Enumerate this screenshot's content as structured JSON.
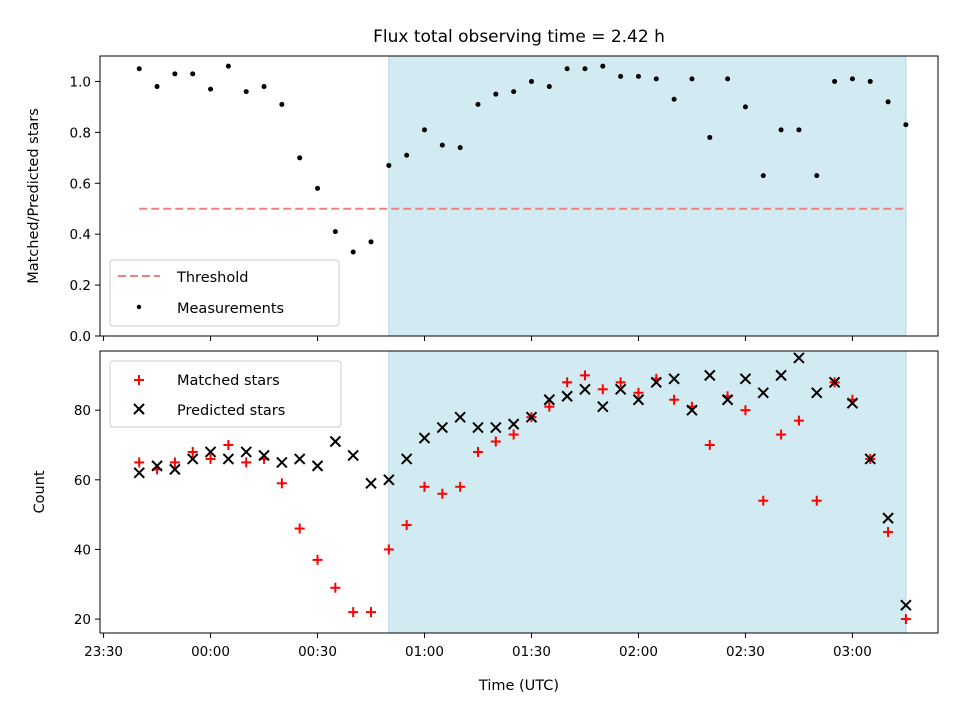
{
  "chart_data": [
    {
      "type": "scatter",
      "title": "Flux total observing time = 2.42 h",
      "xlabel": "",
      "ylabel": "Matched/Predicted stars",
      "ylim": [
        0.0,
        1.1
      ],
      "yticks": [
        "0.0",
        "0.2",
        "0.4",
        "0.6",
        "0.8",
        "1.0"
      ],
      "xlim": [
        "23:29",
        "03:24"
      ],
      "shaded_region": [
        "00:50",
        "03:15"
      ],
      "shaded_color": "#add8e6",
      "threshold": {
        "name": "Threshold",
        "value": 0.5,
        "x_range": [
          "23:40",
          "03:15"
        ],
        "color": "#f08080",
        "style": "dashed"
      },
      "legend": {
        "position": "lower-left",
        "entries": [
          "Threshold",
          "Measurements"
        ]
      },
      "series": [
        {
          "name": "Measurements",
          "marker": "dot",
          "color": "#000000",
          "x": [
            "23:40",
            "23:45",
            "23:50",
            "23:55",
            "00:00",
            "00:05",
            "00:10",
            "00:15",
            "00:20",
            "00:25",
            "00:30",
            "00:35",
            "00:40",
            "00:45",
            "00:50",
            "00:55",
            "01:00",
            "01:05",
            "01:10",
            "01:15",
            "01:20",
            "01:25",
            "01:30",
            "01:35",
            "01:40",
            "01:45",
            "01:50",
            "01:55",
            "02:00",
            "02:05",
            "02:10",
            "02:15",
            "02:20",
            "02:25",
            "02:30",
            "02:35",
            "02:40",
            "02:45",
            "02:50",
            "02:55",
            "03:00",
            "03:05",
            "03:10",
            "03:15"
          ],
          "y": [
            1.05,
            0.98,
            1.03,
            1.03,
            0.97,
            1.06,
            0.96,
            0.98,
            0.91,
            0.7,
            0.58,
            0.41,
            0.33,
            0.37,
            0.67,
            0.71,
            0.81,
            0.75,
            0.74,
            0.91,
            0.95,
            0.96,
            1.0,
            0.98,
            1.05,
            1.05,
            1.06,
            1.02,
            1.02,
            1.01,
            0.93,
            1.01,
            0.78,
            1.01,
            0.9,
            0.63,
            0.81,
            0.81,
            0.63,
            1.0,
            1.01,
            1.0,
            0.92,
            0.83
          ]
        }
      ]
    },
    {
      "type": "scatter",
      "title": "",
      "xlabel": "Time (UTC)",
      "ylabel": "Count",
      "ylim": [
        16,
        97
      ],
      "yticks": [
        "20",
        "40",
        "60",
        "80"
      ],
      "xlim": [
        "23:29",
        "03:24"
      ],
      "xticks": [
        "23:30",
        "00:00",
        "00:30",
        "01:00",
        "01:30",
        "02:00",
        "02:30",
        "03:00"
      ],
      "shaded_region": [
        "00:50",
        "03:15"
      ],
      "shaded_color": "#add8e6",
      "legend": {
        "position": "upper-left",
        "entries": [
          "Matched stars",
          "Predicted stars"
        ]
      },
      "series": [
        {
          "name": "Matched stars",
          "marker": "plus",
          "color": "#ff0000",
          "x": [
            "23:40",
            "23:45",
            "23:50",
            "23:55",
            "00:00",
            "00:05",
            "00:10",
            "00:15",
            "00:20",
            "00:25",
            "00:30",
            "00:35",
            "00:40",
            "00:45",
            "00:50",
            "00:55",
            "01:00",
            "01:05",
            "01:10",
            "01:15",
            "01:20",
            "01:25",
            "01:30",
            "01:35",
            "01:40",
            "01:45",
            "01:50",
            "01:55",
            "02:00",
            "02:05",
            "02:10",
            "02:15",
            "02:20",
            "02:25",
            "02:30",
            "02:35",
            "02:40",
            "02:45",
            "02:50",
            "02:55",
            "03:00",
            "03:05",
            "03:10",
            "03:15"
          ],
          "y": [
            65,
            63,
            65,
            68,
            66,
            70,
            65,
            66,
            59,
            46,
            37,
            29,
            22,
            22,
            40,
            47,
            58,
            56,
            58,
            68,
            71,
            73,
            78,
            81,
            88,
            90,
            86,
            88,
            85,
            89,
            83,
            81,
            70,
            84,
            80,
            54,
            73,
            77,
            54,
            88,
            83,
            66,
            45,
            20
          ]
        },
        {
          "name": "Predicted stars",
          "marker": "x",
          "color": "#000000",
          "x": [
            "23:40",
            "23:45",
            "23:50",
            "23:55",
            "00:00",
            "00:05",
            "00:10",
            "00:15",
            "00:20",
            "00:25",
            "00:30",
            "00:35",
            "00:40",
            "00:45",
            "00:50",
            "00:55",
            "01:00",
            "01:05",
            "01:10",
            "01:15",
            "01:20",
            "01:25",
            "01:30",
            "01:35",
            "01:40",
            "01:45",
            "01:50",
            "01:55",
            "02:00",
            "02:05",
            "02:10",
            "02:15",
            "02:20",
            "02:25",
            "02:30",
            "02:35",
            "02:40",
            "02:45",
            "02:50",
            "02:55",
            "03:00",
            "03:05",
            "03:10",
            "03:15"
          ],
          "y": [
            62,
            64,
            63,
            66,
            68,
            66,
            68,
            67,
            65,
            66,
            64,
            71,
            67,
            59,
            60,
            66,
            72,
            75,
            78,
            75,
            75,
            76,
            78,
            83,
            84,
            86,
            81,
            86,
            83,
            88,
            89,
            80,
            90,
            83,
            89,
            85,
            90,
            95,
            85,
            88,
            82,
            66,
            49,
            24
          ]
        }
      ]
    }
  ]
}
